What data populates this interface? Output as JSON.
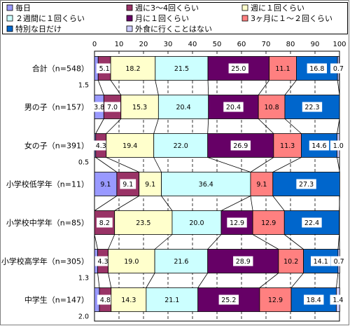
{
  "chart_data": {
    "type": "bar",
    "orientation": "horizontal",
    "stacked": true,
    "xlim": [
      0,
      100
    ],
    "xticks": [
      "0",
      "10",
      "20",
      "30",
      "40",
      "50",
      "60",
      "70",
      "80",
      "90",
      "100"
    ],
    "grid": true,
    "legend_position": "top",
    "categories": [
      "合計（n=548）",
      "男の子（n=157）",
      "女の子（n=391）",
      "小学校低学年（n=11）",
      "小学校中学年（n=85）",
      "小学校高学年（n=305）",
      "中学生（n=147）"
    ],
    "series": [
      {
        "name": "毎日",
        "color": "#9999ff",
        "values": [
          1.5,
          3.8,
          0.5,
          9.1,
          0.0,
          1.3,
          2.0
        ],
        "labels": [
          "1.5",
          "3.8",
          "0.5",
          "9.1",
          "",
          "1.3",
          "2.0"
        ]
      },
      {
        "name": "週に3～4回くらい",
        "color": "#993366",
        "values": [
          5.1,
          7.0,
          4.3,
          9.1,
          8.2,
          4.3,
          4.8
        ],
        "labels": [
          "5.1",
          "7.0",
          "4.3",
          "9.1",
          "8.2",
          "4.3",
          "4.8"
        ]
      },
      {
        "name": "週に１回くらい",
        "color": "#ffffcc",
        "values": [
          18.2,
          15.3,
          19.4,
          9.1,
          23.5,
          19.0,
          14.3
        ],
        "labels": [
          "18.2",
          "15.3",
          "19.4",
          "9.1",
          "23.5",
          "19.0",
          "14.3"
        ]
      },
      {
        "name": "２週間に１回くらい",
        "color": "#ccffff",
        "values": [
          21.5,
          20.4,
          22.0,
          36.4,
          20.0,
          21.6,
          21.1
        ],
        "labels": [
          "21.5",
          "20.4",
          "22.0",
          "36.4",
          "20.0",
          "21.6",
          "21.1"
        ]
      },
      {
        "name": "月に１回くらい",
        "color": "#660066",
        "values": [
          25.0,
          20.4,
          26.9,
          0.0,
          12.9,
          28.9,
          25.2
        ],
        "labels": [
          "25.0",
          "20.4",
          "26.9",
          "",
          "12.9",
          "28.9",
          "25.2"
        ]
      },
      {
        "name": "3ヶ月に１～２回くらい",
        "color": "#ff8080",
        "values": [
          11.1,
          10.8,
          11.3,
          9.1,
          12.9,
          10.2,
          12.9
        ],
        "labels": [
          "11.1",
          "10.8",
          "11.3",
          "9.1",
          "12.9",
          "10.2",
          "12.9"
        ]
      },
      {
        "name": "特別な日だけ",
        "color": "#0066cc",
        "values": [
          16.8,
          22.3,
          14.6,
          27.3,
          22.4,
          14.1,
          18.4
        ],
        "labels": [
          "16.8",
          "22.3",
          "14.6",
          "27.3",
          "22.4",
          "14.1",
          "18.4"
        ]
      },
      {
        "name": "外食に行くことはない",
        "color": "#ccccff",
        "values": [
          0.7,
          0.0,
          1.0,
          0.0,
          0.0,
          0.7,
          1.4
        ],
        "labels": [
          "0.7",
          "",
          "1.0",
          "",
          "",
          "0.7",
          "1.4"
        ]
      }
    ]
  }
}
